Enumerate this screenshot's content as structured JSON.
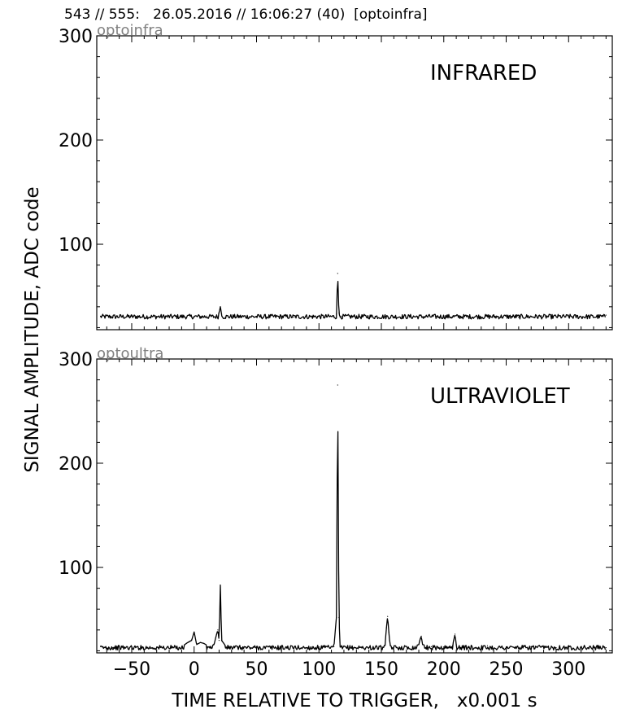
{
  "header": "543 // 555:   26.05.2016 // 16:06:27 (40)  [optoinfra]",
  "ylabel": "SIGNAL AMPLITUDE,  ADC code",
  "xlabel": "TIME RELATIVE TO TRIGGER,   x0.001 s",
  "chart_data": [
    {
      "type": "line",
      "tag": "optoinfra",
      "title": "INFRARED",
      "xlim": [
        -78,
        335
      ],
      "ylim": [
        18,
        300
      ],
      "xticks": [
        -50,
        0,
        50,
        100,
        150,
        200,
        250,
        300
      ],
      "yticks": [
        100,
        200,
        300
      ],
      "baseline": 30.5,
      "x": [
        -75,
        -65,
        -50,
        -30,
        -10,
        0,
        10,
        18,
        20,
        21,
        22,
        25,
        35,
        50,
        65,
        80,
        95,
        105,
        112,
        114,
        115,
        116,
        117,
        118,
        125,
        135,
        145,
        155,
        165,
        180,
        200,
        220,
        240,
        260,
        280,
        300,
        315,
        330
      ],
      "y": [
        31,
        30,
        31,
        30,
        31,
        30,
        31,
        31,
        34,
        40,
        33,
        30,
        31,
        30,
        31,
        30,
        31,
        30,
        31,
        33,
        72,
        34,
        30,
        31,
        30,
        32,
        30,
        31,
        30,
        31,
        31,
        30,
        31,
        30,
        31,
        32,
        31,
        32
      ]
    },
    {
      "type": "line",
      "tag": "optoultra",
      "title": "ULTRAVIOLET",
      "xlim": [
        -78,
        335
      ],
      "ylim": [
        18,
        300
      ],
      "xticks": [
        -50,
        0,
        50,
        100,
        150,
        200,
        250,
        300
      ],
      "yticks": [
        100,
        200,
        300
      ],
      "baseline": 23,
      "x": [
        -75,
        -65,
        -50,
        -30,
        -10,
        -5,
        -2,
        0,
        2,
        5,
        8,
        12,
        16,
        18,
        19,
        20,
        21,
        22,
        25,
        35,
        50,
        65,
        80,
        95,
        105,
        112,
        114,
        115,
        116,
        117,
        118,
        125,
        135,
        145,
        153,
        154,
        155,
        156,
        157,
        165,
        175,
        180,
        181,
        182,
        183,
        190,
        205,
        207,
        208,
        209,
        210,
        212,
        220,
        235,
        250,
        270,
        290,
        310,
        330
      ],
      "y": [
        24,
        23,
        24,
        23,
        24,
        28,
        30,
        38,
        26,
        28,
        27,
        24,
        26,
        36,
        40,
        30,
        83,
        30,
        25,
        24,
        23,
        24,
        23,
        24,
        23,
        24,
        52,
        275,
        52,
        25,
        24,
        23,
        24,
        23,
        25,
        42,
        53,
        38,
        25,
        23,
        24,
        26,
        31,
        34,
        26,
        24,
        23,
        25,
        30,
        36,
        26,
        24,
        23,
        25,
        23,
        24,
        23,
        24,
        23
      ]
    }
  ]
}
